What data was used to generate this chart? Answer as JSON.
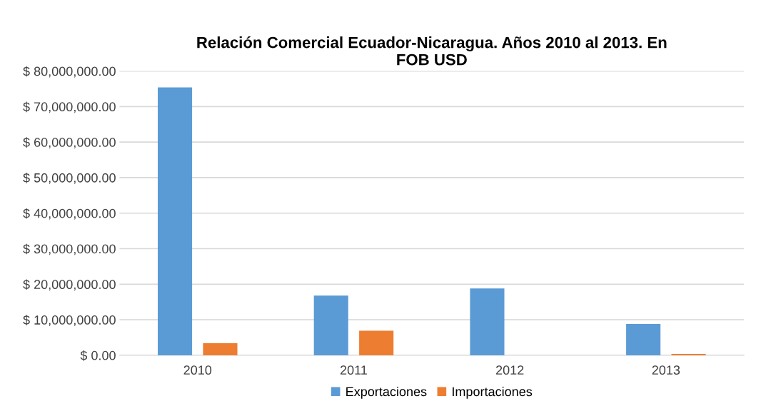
{
  "chart_data": {
    "type": "bar",
    "title": "Relación Comercial Ecuador-Nicaragua. Años 2010 al 2013. En\nFOB USD",
    "categories": [
      "2010",
      "2011",
      "2012",
      "2013"
    ],
    "series": [
      {
        "name": "Exportaciones",
        "color": "#5b9bd5",
        "values": [
          75400000,
          16800000,
          18800000,
          8800000
        ]
      },
      {
        "name": "Importaciones",
        "color": "#ed7d31",
        "values": [
          3400000,
          6900000,
          0,
          400000
        ]
      }
    ],
    "ylim": [
      0,
      80000000
    ],
    "yticks": [
      {
        "value": 0,
        "label": "$ 0.00"
      },
      {
        "value": 10000000,
        "label": "$ 10,000,000.00"
      },
      {
        "value": 20000000,
        "label": "$ 20,000,000.00"
      },
      {
        "value": 30000000,
        "label": "$ 30,000,000.00"
      },
      {
        "value": 40000000,
        "label": "$ 40,000,000.00"
      },
      {
        "value": 50000000,
        "label": "$ 50,000,000.00"
      },
      {
        "value": 60000000,
        "label": "$ 60,000,000.00"
      },
      {
        "value": 70000000,
        "label": "$ 70,000,000.00"
      },
      {
        "value": 80000000,
        "label": "$ 80,000,000.00"
      }
    ],
    "grid": "y",
    "legend": "bottom"
  }
}
